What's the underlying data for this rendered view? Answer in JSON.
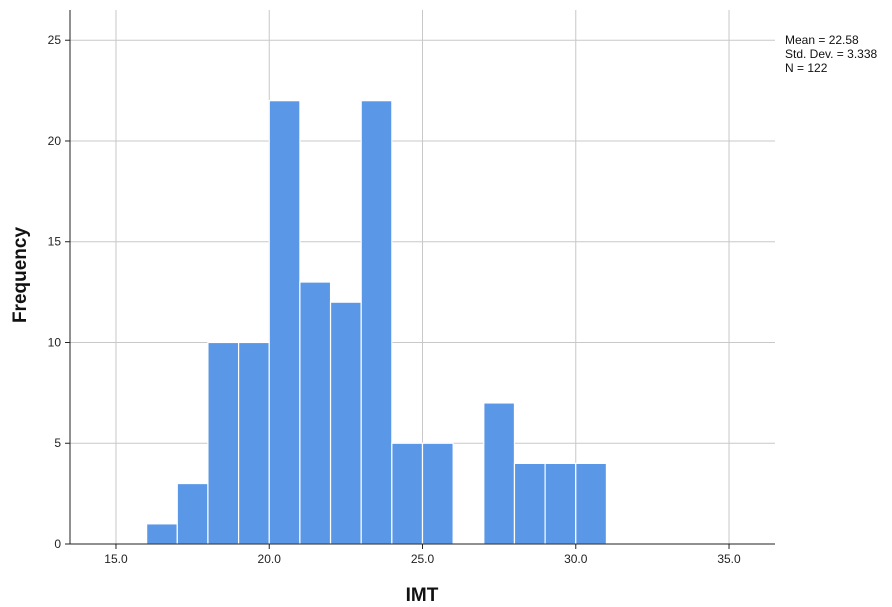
{
  "chart_data": {
    "type": "bar",
    "subtype": "histogram",
    "xlabel": "IMT",
    "ylabel": "Frequency",
    "xlim": [
      13.5,
      36.5
    ],
    "ylim": [
      0,
      26.5
    ],
    "x_ticks": [
      15.0,
      20.0,
      25.0,
      30.0,
      35.0
    ],
    "x_tick_labels": [
      "15.0",
      "20.0",
      "25.0",
      "30.0",
      "35.0"
    ],
    "y_ticks": [
      0,
      5,
      10,
      15,
      20,
      25
    ],
    "y_tick_labels": [
      "0",
      "5",
      "10",
      "15",
      "20",
      "25"
    ],
    "bin_width": 1,
    "bins": [
      {
        "start": 16,
        "end": 17,
        "count": 1
      },
      {
        "start": 17,
        "end": 18,
        "count": 3
      },
      {
        "start": 18,
        "end": 19,
        "count": 10
      },
      {
        "start": 19,
        "end": 20,
        "count": 10
      },
      {
        "start": 20,
        "end": 21,
        "count": 22
      },
      {
        "start": 21,
        "end": 22,
        "count": 13
      },
      {
        "start": 22,
        "end": 23,
        "count": 12
      },
      {
        "start": 23,
        "end": 24,
        "count": 22
      },
      {
        "start": 24,
        "end": 25,
        "count": 5
      },
      {
        "start": 25,
        "end": 26,
        "count": 5
      },
      {
        "start": 26,
        "end": 27,
        "count": 0
      },
      {
        "start": 27,
        "end": 28,
        "count": 7
      },
      {
        "start": 28,
        "end": 29,
        "count": 4
      },
      {
        "start": 29,
        "end": 30,
        "count": 4
      },
      {
        "start": 30,
        "end": 31,
        "count": 4
      }
    ],
    "grid": true,
    "stats": {
      "mean_label": "Mean = 22.58",
      "sd_label": "Std. Dev. = 3.338",
      "n_label": "N = 122"
    },
    "stats_position": "top-right",
    "colors": {
      "bar_fill": "#5a97e6",
      "bar_edge": "#ffffff",
      "grid": "#c8c8c8",
      "axis": "#222222"
    }
  }
}
